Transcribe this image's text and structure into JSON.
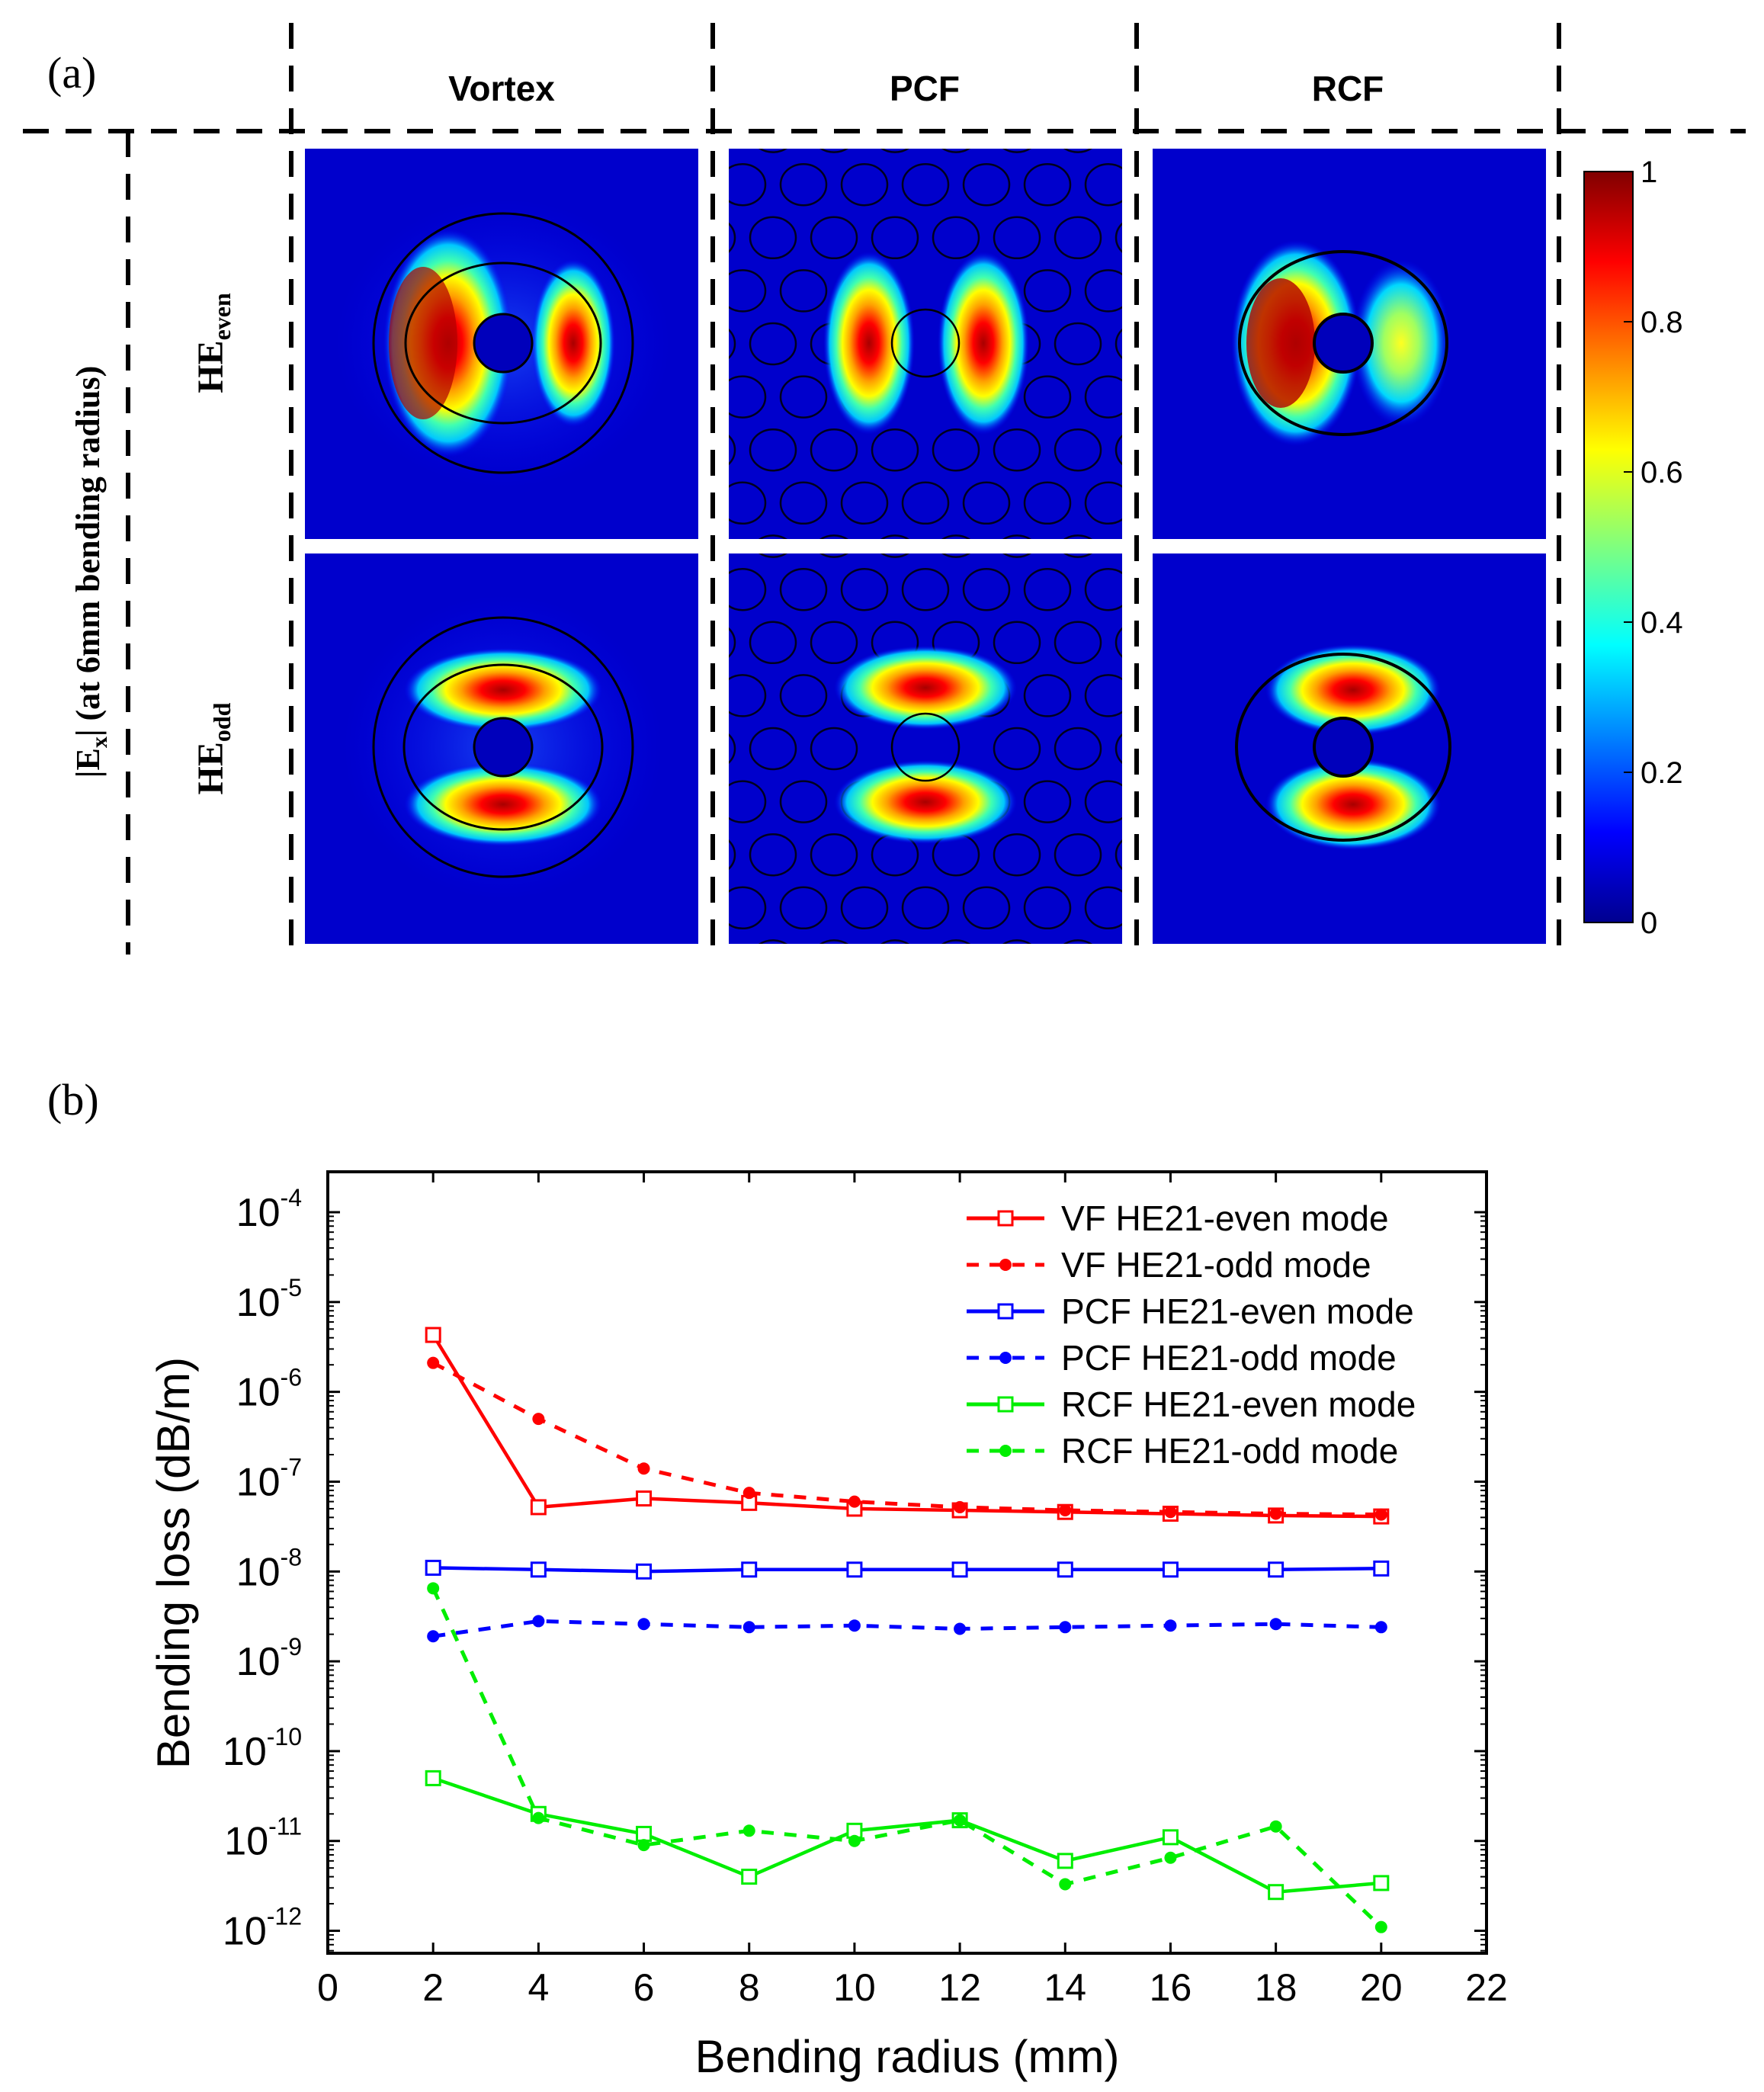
{
  "panel_a": {
    "label": "(a)",
    "columns": [
      "Vortex",
      "PCF",
      "RCF"
    ],
    "row_axis_label": "|E",
    "row_axis_sub": "x",
    "row_axis_rest": "| (at 6mm bending radius)",
    "rows": [
      {
        "main": "HE",
        "sub": "even"
      },
      {
        "main": "HE",
        "sub": "odd"
      }
    ],
    "colorbar": {
      "ticks": [
        "0",
        "0.2",
        "0.4",
        "0.6",
        "0.8",
        "1"
      ],
      "min": 0,
      "max": 1
    }
  },
  "panel_b": {
    "label": "(b)"
  },
  "chart_data": {
    "type": "line",
    "xlabel": "Bending radius (mm)",
    "ylabel": "Bending loss (dB/m)",
    "yscale": "log",
    "xlim": [
      0,
      22
    ],
    "ylim_log10": [
      -12.25,
      -3.55
    ],
    "xticks": [
      0,
      2,
      4,
      6,
      8,
      10,
      12,
      14,
      16,
      18,
      20,
      22
    ],
    "xtick_labels": [
      "0",
      "2",
      "4",
      "6",
      "8",
      "10",
      "12",
      "14",
      "16",
      "18",
      "20",
      "22"
    ],
    "ytick_exponents": [
      -4,
      -5,
      -6,
      -7,
      -8,
      -9,
      -10,
      -11,
      -12
    ],
    "ytick_base": "10",
    "ytick_labels": [
      "-4",
      "-5",
      "-6",
      "-7",
      "-8",
      "-9",
      "-10",
      "-11",
      "-12"
    ],
    "legend_position": "top-right",
    "x": [
      2,
      4,
      6,
      8,
      10,
      12,
      14,
      16,
      18,
      20
    ],
    "series": [
      {
        "name": "VF HE21-even mode",
        "color": "#ff0000",
        "dash": "solid",
        "marker": "square",
        "values": [
          4.3e-06,
          5.2e-08,
          6.5e-08,
          5.8e-08,
          5e-08,
          4.8e-08,
          4.6e-08,
          4.4e-08,
          4.2e-08,
          4.1e-08
        ]
      },
      {
        "name": "VF HE21-odd mode",
        "color": "#ff0000",
        "dash": "dashed",
        "marker": "dot",
        "values": [
          2.1e-06,
          5e-07,
          1.4e-07,
          7.5e-08,
          6e-08,
          5.2e-08,
          4.8e-08,
          4.6e-08,
          4.4e-08,
          4.3e-08
        ]
      },
      {
        "name": "PCF HE21-even mode",
        "color": "#0000ff",
        "dash": "solid",
        "marker": "square",
        "values": [
          1.1e-08,
          1.05e-08,
          1e-08,
          1.05e-08,
          1.05e-08,
          1.05e-08,
          1.05e-08,
          1.05e-08,
          1.05e-08,
          1.08e-08
        ]
      },
      {
        "name": "PCF HE21-odd mode",
        "color": "#0000ff",
        "dash": "dashed",
        "marker": "dot",
        "values": [
          1.9e-09,
          2.8e-09,
          2.6e-09,
          2.4e-09,
          2.5e-09,
          2.3e-09,
          2.4e-09,
          2.5e-09,
          2.6e-09,
          2.4e-09
        ]
      },
      {
        "name": "RCF HE21-even mode",
        "color": "#00ee00",
        "dash": "solid",
        "marker": "square",
        "values": [
          5e-11,
          2e-11,
          1.2e-11,
          4e-12,
          1.3e-11,
          1.7e-11,
          6e-12,
          1.1e-11,
          2.7e-12,
          3.4e-12
        ]
      },
      {
        "name": "RCF HE21-odd mode",
        "color": "#00ee00",
        "dash": "dashed",
        "marker": "dot",
        "values": [
          6.5e-09,
          1.8e-11,
          9e-12,
          1.3e-11,
          1e-11,
          1.7e-11,
          3.3e-12,
          6.5e-12,
          1.45e-11,
          1.1e-12
        ]
      }
    ]
  }
}
